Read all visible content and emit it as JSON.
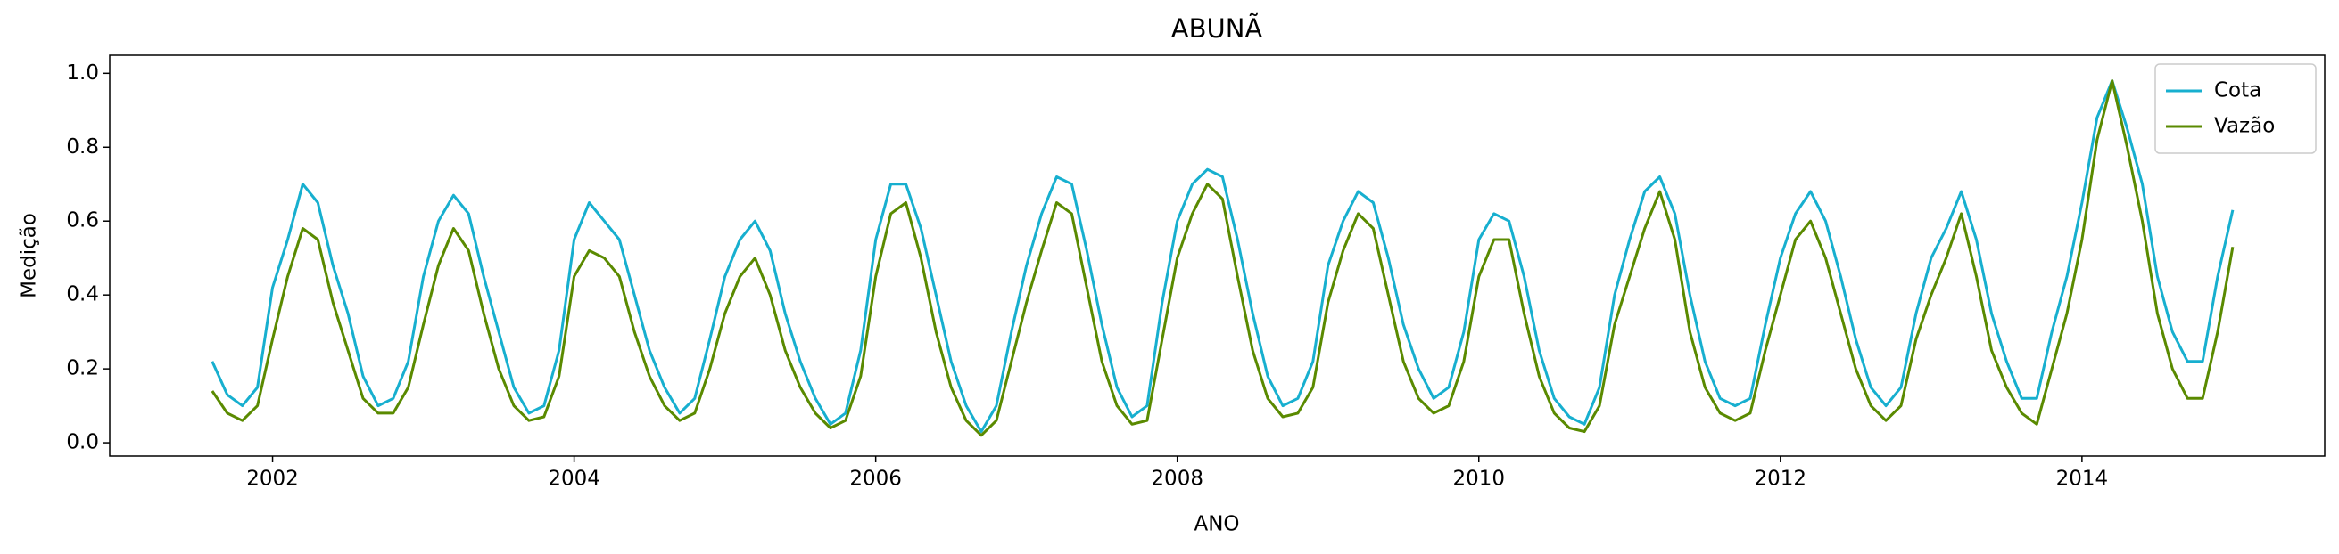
{
  "chart_data": {
    "type": "line",
    "title": "ABUNÃ",
    "xlabel": "ANO",
    "ylabel": "Medição",
    "x": [
      2001.6,
      2001.7,
      2001.8,
      2001.9,
      2002.0,
      2002.1,
      2002.2,
      2002.3,
      2002.4,
      2002.5,
      2002.6,
      2002.7,
      2002.8,
      2002.9,
      2003.0,
      2003.1,
      2003.2,
      2003.3,
      2003.4,
      2003.5,
      2003.6,
      2003.7,
      2003.8,
      2003.9,
      2004.0,
      2004.1,
      2004.2,
      2004.3,
      2004.4,
      2004.5,
      2004.6,
      2004.7,
      2004.8,
      2004.9,
      2005.0,
      2005.1,
      2005.2,
      2005.3,
      2005.4,
      2005.5,
      2005.6,
      2005.7,
      2005.8,
      2005.9,
      2006.0,
      2006.1,
      2006.2,
      2006.3,
      2006.4,
      2006.5,
      2006.6,
      2006.7,
      2006.8,
      2006.9,
      2007.0,
      2007.1,
      2007.2,
      2007.3,
      2007.4,
      2007.5,
      2007.6,
      2007.7,
      2007.8,
      2007.9,
      2008.0,
      2008.1,
      2008.2,
      2008.3,
      2008.4,
      2008.5,
      2008.6,
      2008.7,
      2008.8,
      2008.9,
      2009.0,
      2009.1,
      2009.2,
      2009.3,
      2009.4,
      2009.5,
      2009.6,
      2009.7,
      2009.8,
      2009.9,
      2010.0,
      2010.1,
      2010.2,
      2010.3,
      2010.4,
      2010.5,
      2010.6,
      2010.7,
      2010.8,
      2010.9,
      2011.0,
      2011.1,
      2011.2,
      2011.3,
      2011.4,
      2011.5,
      2011.6,
      2011.7,
      2011.8,
      2011.9,
      2012.0,
      2012.1,
      2012.2,
      2012.3,
      2012.4,
      2012.5,
      2012.6,
      2012.7,
      2012.8,
      2012.9,
      2013.0,
      2013.1,
      2013.2,
      2013.3,
      2013.4,
      2013.5,
      2013.6,
      2013.7,
      2013.8,
      2013.9,
      2014.0,
      2014.1,
      2014.2,
      2014.3,
      2014.4,
      2014.5,
      2014.6,
      2014.7,
      2014.8,
      2014.9,
      2015.0
    ],
    "series": [
      {
        "name": "Cota",
        "color": "#17afcf",
        "values": [
          0.22,
          0.13,
          0.1,
          0.15,
          0.42,
          0.55,
          0.7,
          0.65,
          0.48,
          0.35,
          0.18,
          0.1,
          0.12,
          0.22,
          0.45,
          0.6,
          0.67,
          0.62,
          0.45,
          0.3,
          0.15,
          0.08,
          0.1,
          0.25,
          0.55,
          0.65,
          0.6,
          0.55,
          0.4,
          0.25,
          0.15,
          0.08,
          0.12,
          0.28,
          0.45,
          0.55,
          0.6,
          0.52,
          0.35,
          0.22,
          0.12,
          0.05,
          0.08,
          0.25,
          0.55,
          0.7,
          0.7,
          0.58,
          0.4,
          0.22,
          0.1,
          0.03,
          0.1,
          0.3,
          0.48,
          0.62,
          0.72,
          0.7,
          0.52,
          0.32,
          0.15,
          0.07,
          0.1,
          0.38,
          0.6,
          0.7,
          0.74,
          0.72,
          0.55,
          0.35,
          0.18,
          0.1,
          0.12,
          0.22,
          0.48,
          0.6,
          0.68,
          0.65,
          0.5,
          0.32,
          0.2,
          0.12,
          0.15,
          0.3,
          0.55,
          0.62,
          0.6,
          0.45,
          0.25,
          0.12,
          0.07,
          0.05,
          0.15,
          0.4,
          0.55,
          0.68,
          0.72,
          0.62,
          0.4,
          0.22,
          0.12,
          0.1,
          0.12,
          0.32,
          0.5,
          0.62,
          0.68,
          0.6,
          0.45,
          0.28,
          0.15,
          0.1,
          0.15,
          0.35,
          0.5,
          0.58,
          0.68,
          0.55,
          0.35,
          0.22,
          0.12,
          0.12,
          0.3,
          0.45,
          0.65,
          0.88,
          0.98,
          0.85,
          0.7,
          0.45,
          0.3,
          0.22,
          0.22,
          0.45,
          0.63
        ]
      },
      {
        "name": "Vazão",
        "color": "#5a8a00",
        "values": [
          0.14,
          0.08,
          0.06,
          0.1,
          0.28,
          0.45,
          0.58,
          0.55,
          0.38,
          0.25,
          0.12,
          0.08,
          0.08,
          0.15,
          0.32,
          0.48,
          0.58,
          0.52,
          0.35,
          0.2,
          0.1,
          0.06,
          0.07,
          0.18,
          0.45,
          0.52,
          0.5,
          0.45,
          0.3,
          0.18,
          0.1,
          0.06,
          0.08,
          0.2,
          0.35,
          0.45,
          0.5,
          0.4,
          0.25,
          0.15,
          0.08,
          0.04,
          0.06,
          0.18,
          0.45,
          0.62,
          0.65,
          0.5,
          0.3,
          0.15,
          0.06,
          0.02,
          0.06,
          0.22,
          0.38,
          0.52,
          0.65,
          0.62,
          0.42,
          0.22,
          0.1,
          0.05,
          0.06,
          0.28,
          0.5,
          0.62,
          0.7,
          0.66,
          0.45,
          0.25,
          0.12,
          0.07,
          0.08,
          0.15,
          0.38,
          0.52,
          0.62,
          0.58,
          0.4,
          0.22,
          0.12,
          0.08,
          0.1,
          0.22,
          0.45,
          0.55,
          0.55,
          0.35,
          0.18,
          0.08,
          0.04,
          0.03,
          0.1,
          0.32,
          0.45,
          0.58,
          0.68,
          0.55,
          0.3,
          0.15,
          0.08,
          0.06,
          0.08,
          0.25,
          0.4,
          0.55,
          0.6,
          0.5,
          0.35,
          0.2,
          0.1,
          0.06,
          0.1,
          0.28,
          0.4,
          0.5,
          0.62,
          0.45,
          0.25,
          0.15,
          0.08,
          0.05,
          0.2,
          0.35,
          0.55,
          0.82,
          0.98,
          0.8,
          0.6,
          0.35,
          0.2,
          0.12,
          0.12,
          0.3,
          0.53
        ]
      }
    ],
    "xlim": [
      2000.92,
      2015.61
    ],
    "xticks": [
      2002,
      2004,
      2006,
      2008,
      2010,
      2012,
      2014
    ],
    "ylim": [
      -0.036,
      1.049
    ],
    "yticks": [
      {
        "value": 0,
        "label": "0.0"
      },
      0.2,
      0.4,
      0.6,
      0.8,
      {
        "value": 1,
        "label": "1.0"
      }
    ],
    "legend": "upper right"
  }
}
